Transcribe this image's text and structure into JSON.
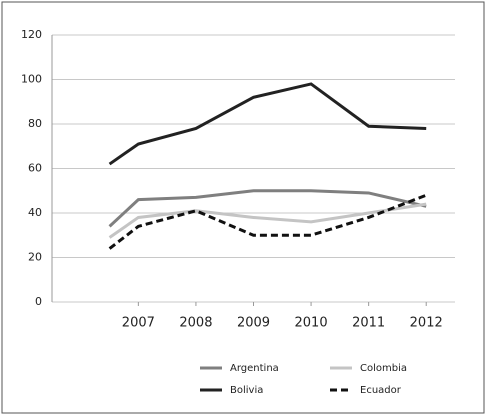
{
  "chart_data": {
    "type": "line",
    "x": [
      2006.5,
      2007,
      2008,
      2009,
      2010,
      2011,
      2012
    ],
    "xlim": [
      2005.5,
      2012.5
    ],
    "xticks": [
      2007,
      2008,
      2009,
      2010,
      2011,
      2012
    ],
    "ylim": [
      0,
      120
    ],
    "yticks": [
      0,
      20,
      40,
      60,
      80,
      100,
      120
    ],
    "grid": true,
    "series": [
      {
        "name": "Argentina",
        "color": "#7f7f7f",
        "dashed": false,
        "values": [
          34,
          46,
          47,
          50,
          50,
          49,
          43
        ]
      },
      {
        "name": "Colombia",
        "color": "#c4c4c4",
        "dashed": false,
        "values": [
          29,
          38,
          41,
          38,
          36,
          40,
          44
        ]
      },
      {
        "name": "Bolivia",
        "color": "#222222",
        "dashed": false,
        "values": [
          62,
          71,
          78,
          92,
          98,
          79,
          78
        ]
      },
      {
        "name": "Ecuador",
        "color": "#111111",
        "dashed": true,
        "values": [
          24,
          34,
          41,
          30,
          30,
          38,
          48
        ]
      }
    ]
  }
}
